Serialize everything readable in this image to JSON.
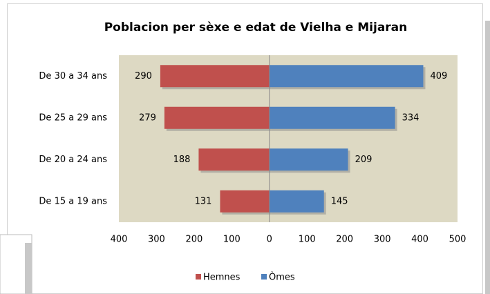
{
  "chart_data": {
    "type": "bar",
    "orientation": "horizontal",
    "title": "Poblacion per sèxe e edat de Vielha e Mijaran",
    "categories": [
      "De 30 a 34 ans",
      "De 25 a 29 ans",
      "De 20 a 24 ans",
      "De 15 a 19 ans"
    ],
    "series": [
      {
        "name": "Hemnes",
        "color": "#c0504d",
        "values": [
          -290,
          -279,
          -188,
          -131
        ],
        "value_labels": [
          "290",
          "279",
          "188",
          "131"
        ]
      },
      {
        "name": "Òmes",
        "color": "#4f81bd",
        "values": [
          409,
          334,
          209,
          145
        ]
      }
    ],
    "xlim": [
      -400,
      500
    ],
    "xticks": [
      {
        "value": -400,
        "label": "400"
      },
      {
        "value": -300,
        "label": "300"
      },
      {
        "value": -200,
        "label": "200"
      },
      {
        "value": -100,
        "label": "100"
      },
      0,
      100,
      200,
      300,
      400,
      500
    ],
    "legend": "bottom"
  }
}
